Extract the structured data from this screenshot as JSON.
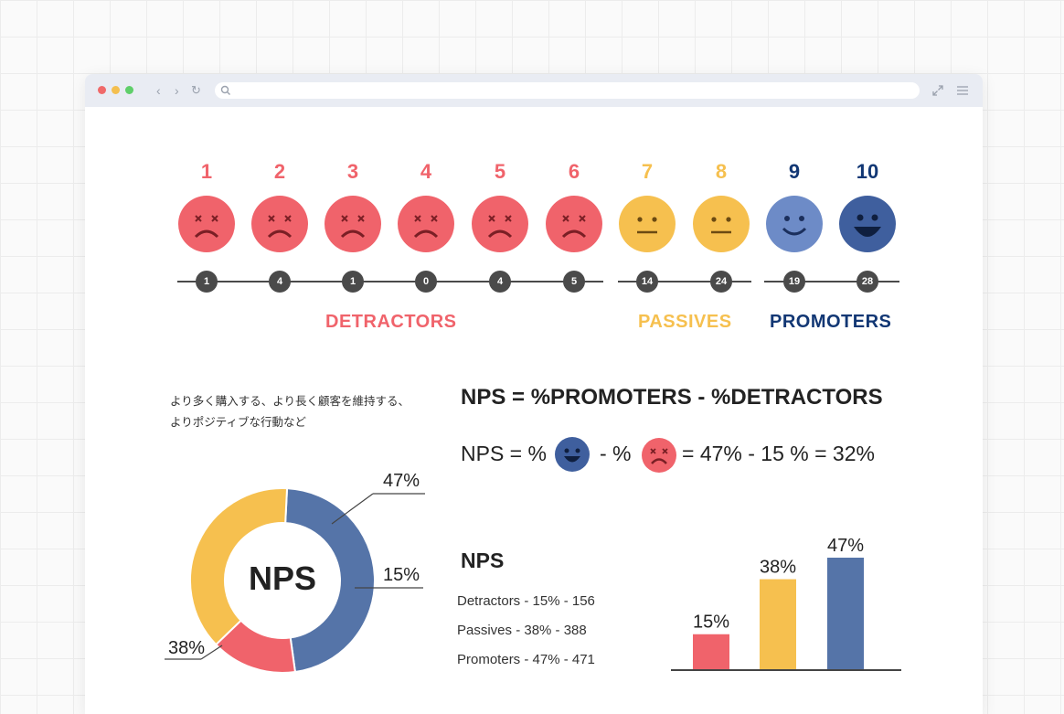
{
  "scale": {
    "items": [
      {
        "score": "1",
        "count": "1",
        "mood": "sad",
        "color": "#f0636b"
      },
      {
        "score": "2",
        "count": "4",
        "mood": "sad",
        "color": "#f0636b"
      },
      {
        "score": "3",
        "count": "1",
        "mood": "sad",
        "color": "#f0636b"
      },
      {
        "score": "4",
        "count": "0",
        "mood": "sad",
        "color": "#f0636b"
      },
      {
        "score": "5",
        "count": "4",
        "mood": "sad",
        "color": "#f0636b"
      },
      {
        "score": "6",
        "count": "5",
        "mood": "sad",
        "color": "#f0636b"
      },
      {
        "score": "7",
        "count": "14",
        "mood": "neutral",
        "color": "#f6c04f"
      },
      {
        "score": "8",
        "count": "24",
        "mood": "neutral",
        "color": "#f6c04f"
      },
      {
        "score": "9",
        "count": "19",
        "mood": "smile",
        "color": "#6d8bc7"
      },
      {
        "score": "10",
        "count": "28",
        "mood": "big-smile",
        "color": "#3f5f9e"
      }
    ],
    "categories": {
      "detractors": "DETRACTORS",
      "passives": "PASSIVES",
      "promoters": "PROMOTERS"
    }
  },
  "colors": {
    "detractor": "#f0636b",
    "passive": "#f6c04f",
    "promoter_light": "#6d8bc7",
    "promoter": "#3f5f9e",
    "ring_promoter": "#5574a8",
    "promoters_text": "#123774"
  },
  "text": {
    "jp_line1": "より多く購入する、より長く顧客を維持する、",
    "jp_line2": "よりポジティブな行動など",
    "formula_title": "NPS = %PROMOTERS - %DETRACTORS",
    "formula_prefix": "NPS = %",
    "formula_minus": "- %",
    "formula_result": "= 47% - 15 % = 32%",
    "donut_center": "NPS",
    "nps_label": "NPS",
    "legend": [
      "Detractors - 15% - 156",
      "Passives - 38% - 388",
      "Promoters - 47% - 471"
    ]
  },
  "chart_data": [
    {
      "type": "pie",
      "center_label": "NPS",
      "slices": [
        {
          "label": "Promoters",
          "value": 47,
          "display": "47%",
          "color": "#5574a8"
        },
        {
          "label": "Detractors",
          "value": 15,
          "display": "15%",
          "color": "#f0636b"
        },
        {
          "label": "Passives",
          "value": 38,
          "display": "38%",
          "color": "#f6c04f"
        }
      ]
    },
    {
      "type": "bar",
      "categories": [
        "Detractors",
        "Passives",
        "Promoters"
      ],
      "values": [
        15,
        38,
        47
      ],
      "labels": [
        "15%",
        "38%",
        "47%"
      ],
      "colors": [
        "#f0636b",
        "#f6c04f",
        "#5574a8"
      ],
      "ylim": [
        0,
        47
      ]
    }
  ]
}
